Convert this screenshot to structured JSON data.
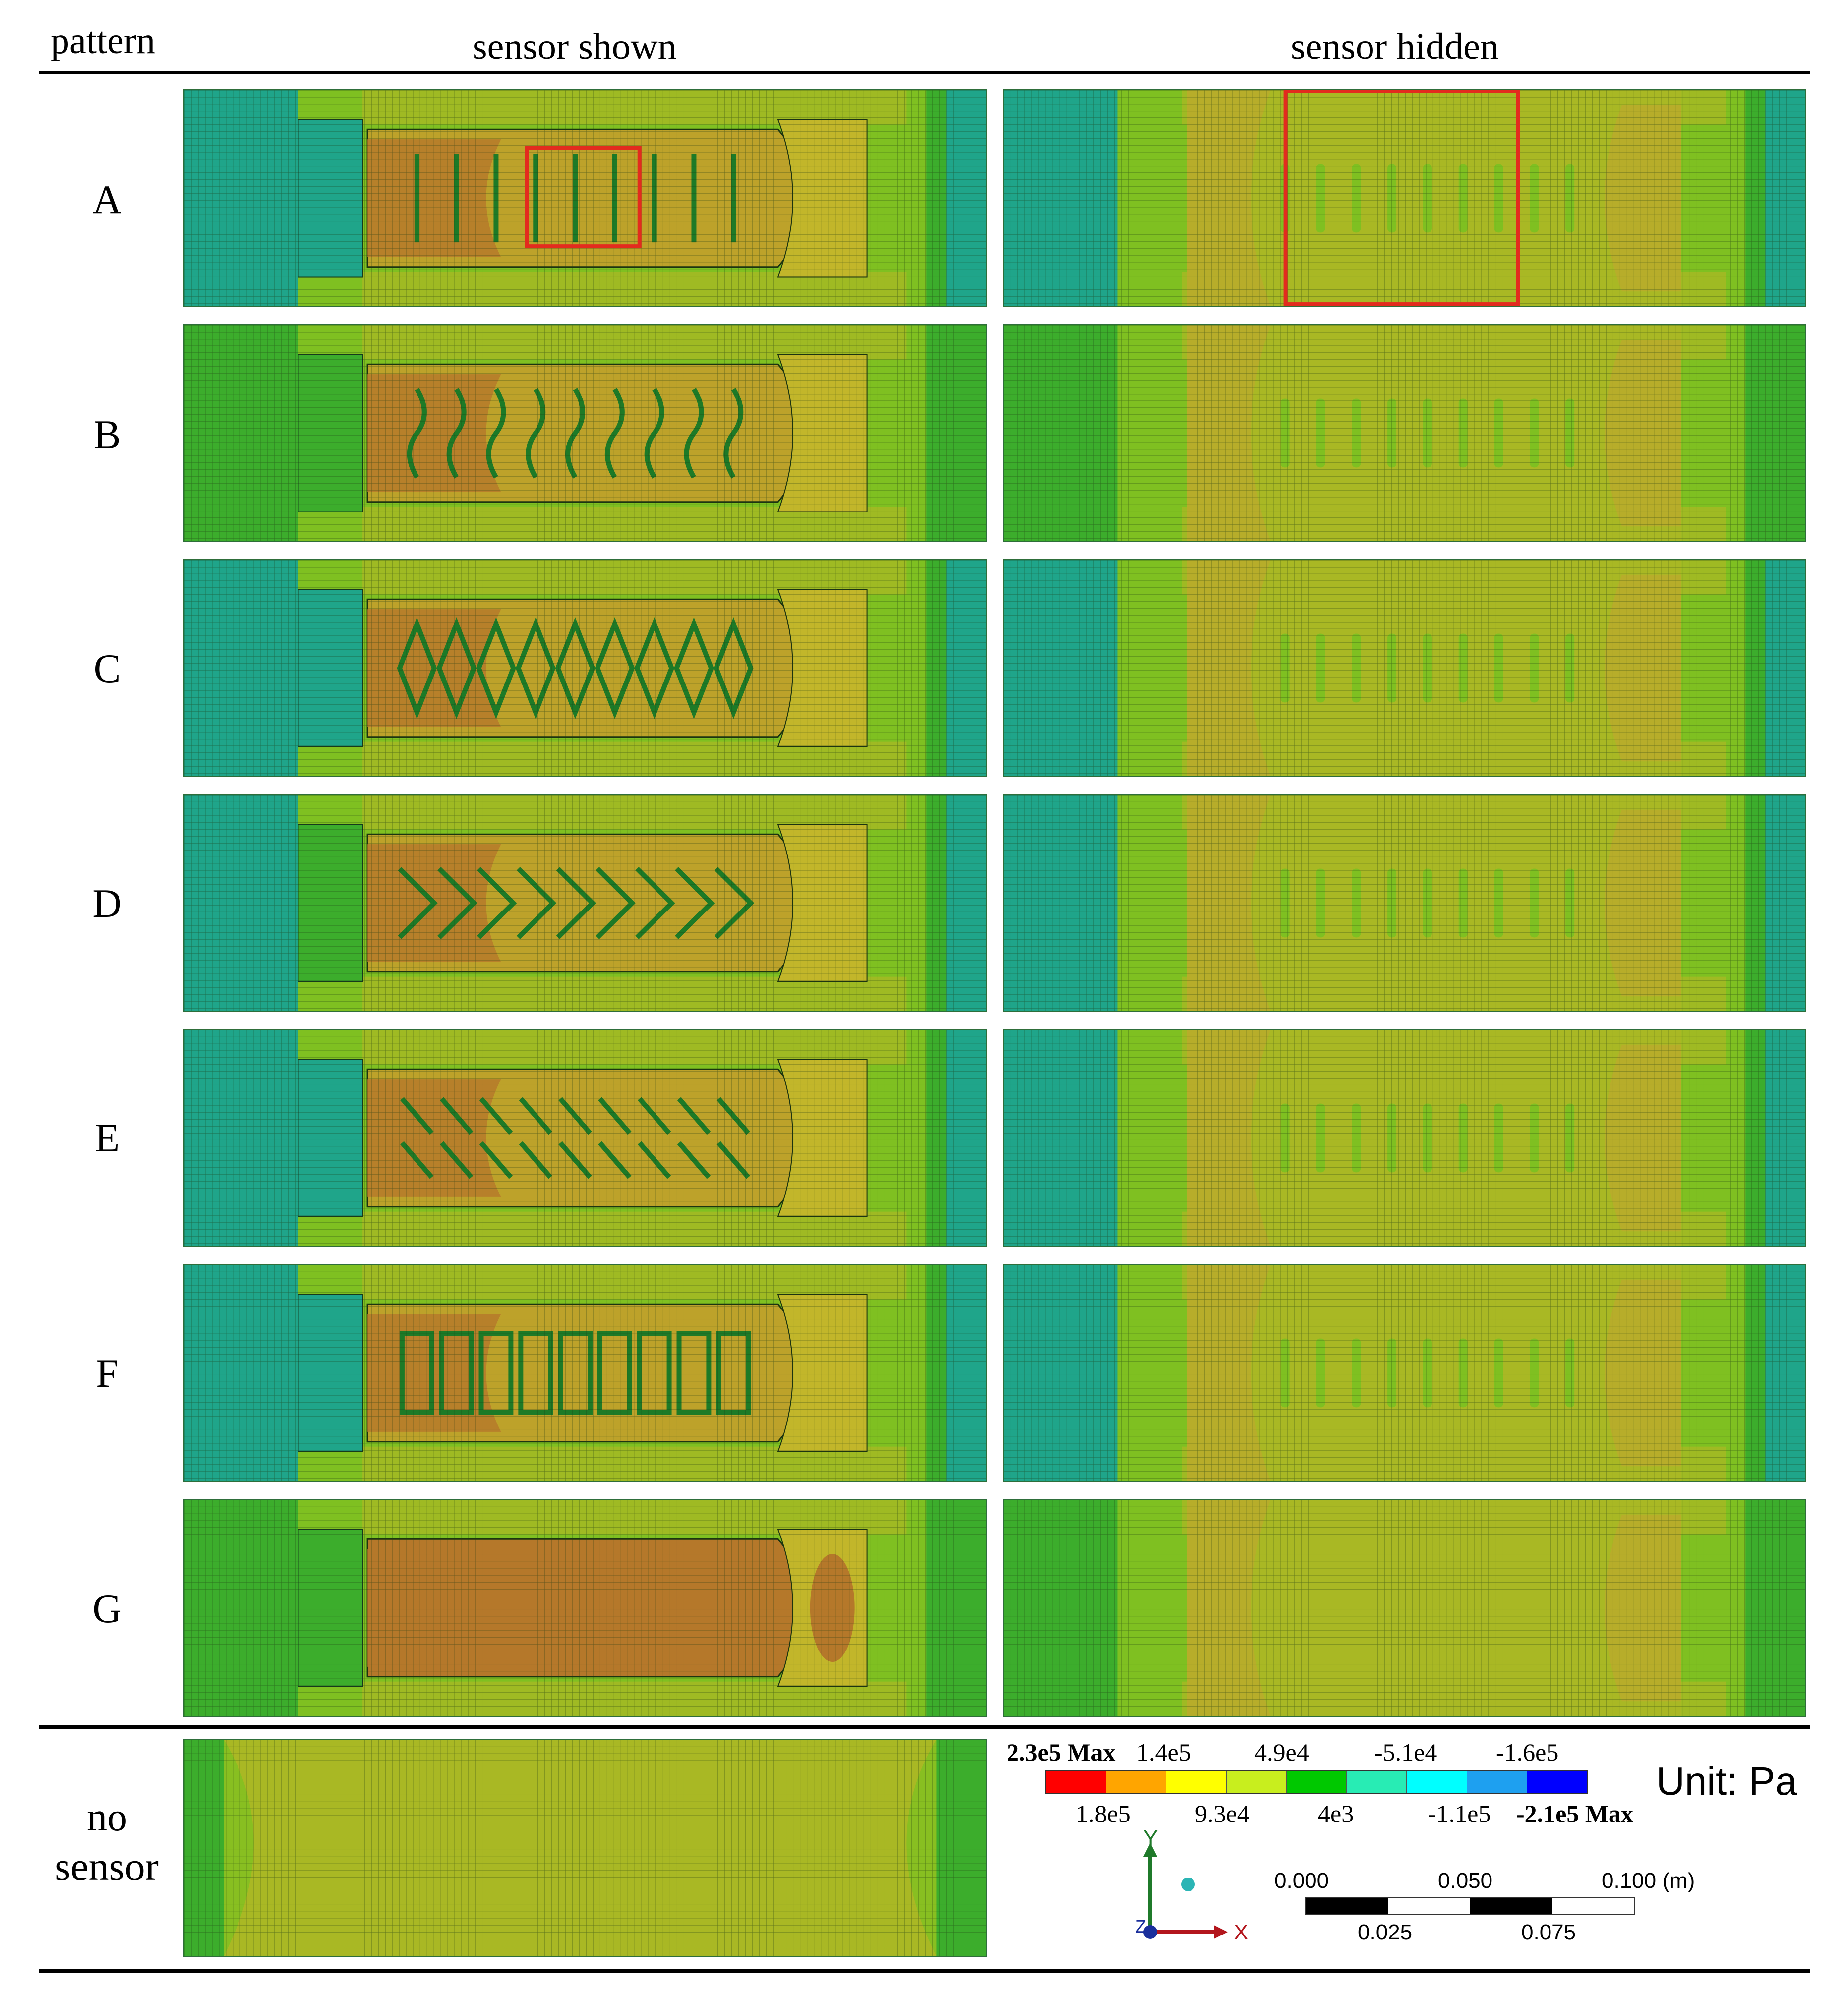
{
  "header": {
    "pattern_label": "pattern",
    "col_shown": "sensor shown",
    "col_hidden": "sensor hidden"
  },
  "rows": [
    {
      "label": "A",
      "highlight_shown": true,
      "highlight_hidden": true
    },
    {
      "label": "B",
      "highlight_shown": false,
      "highlight_hidden": false
    },
    {
      "label": "C",
      "highlight_shown": false,
      "highlight_hidden": false
    },
    {
      "label": "D",
      "highlight_shown": false,
      "highlight_hidden": false
    },
    {
      "label": "E",
      "highlight_shown": false,
      "highlight_hidden": false
    },
    {
      "label": "F",
      "highlight_shown": false,
      "highlight_hidden": false
    },
    {
      "label": "G",
      "highlight_shown": false,
      "highlight_hidden": false
    }
  ],
  "no_sensor": {
    "line1": "no",
    "line2": "sensor"
  },
  "legend": {
    "top_labels": [
      "2.3e5 Max",
      "1.4e5",
      "4.9e4",
      "-5.1e4",
      "-1.6e5"
    ],
    "bottom_labels": [
      "1.8e5",
      "9.3e4",
      "4e3",
      "-1.1e5",
      "-2.1e5 Max"
    ],
    "colors": [
      "#ff0000",
      "#ffa500",
      "#ffff00",
      "#c8ee1e",
      "#00c800",
      "#28ecb4",
      "#00ffff",
      "#1ea0f0",
      "#0000ff"
    ],
    "unit": "Unit: Pa"
  },
  "axes": {
    "x": "X",
    "y": "Y",
    "z": "Z"
  },
  "scale_bar": {
    "top_labels": [
      "0.000",
      "0.050",
      "0.100 (m)"
    ],
    "bottom_labels": [
      "0.025",
      "0.075"
    ]
  },
  "palette": {
    "teal": "#1fa58a",
    "green": "#3cad2c",
    "lime": "#7fc021",
    "olive": "#a9b824",
    "tan": "#bda22a",
    "brown": "#b5782a",
    "highlight": "#e32b1e"
  }
}
